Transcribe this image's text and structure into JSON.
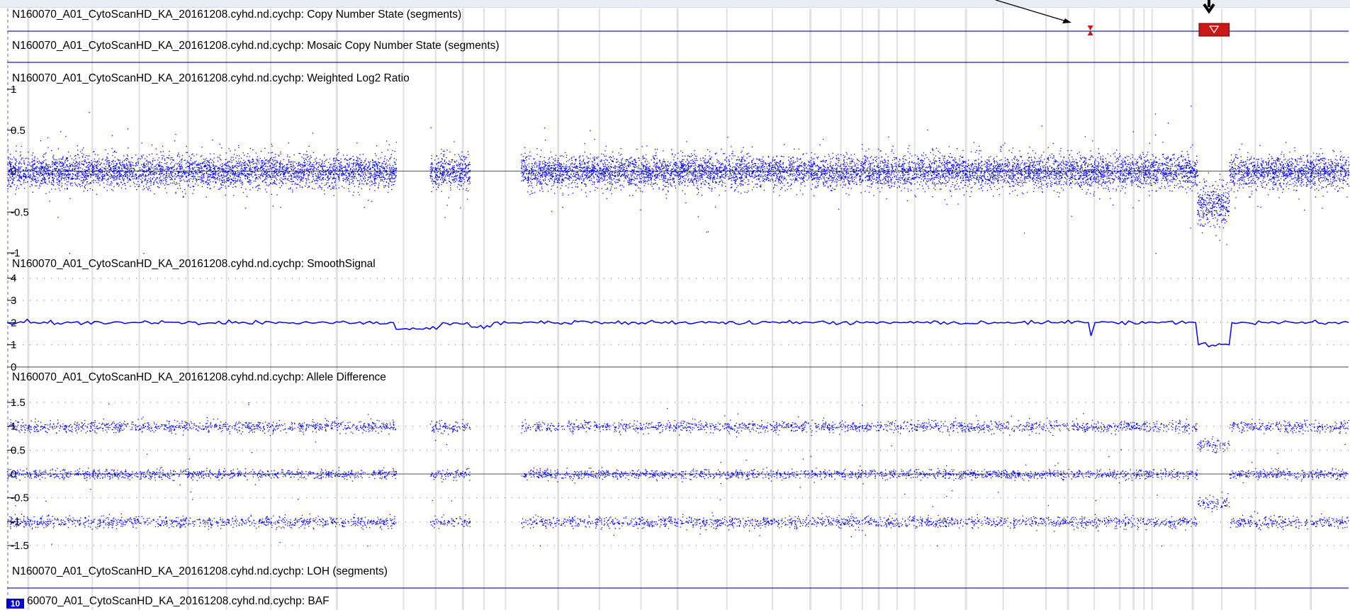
{
  "tracks": {
    "cn_state": "N160070_A01_CytoScanHD_KA_20161208.cyhd.nd.cychp: Copy Number State (segments)",
    "mosaic": "N160070_A01_CytoScanHD_KA_20161208.cyhd.nd.cychp: Mosaic Copy Number State (segments)",
    "log2": "N160070_A01_CytoScanHD_KA_20161208.cyhd.nd.cychp: Weighted Log2 Ratio",
    "smooth": "N160070_A01_CytoScanHD_KA_20161208.cyhd.nd.cychp: SmoothSignal",
    "allele": "N160070_A01_CytoScanHD_KA_20161208.cyhd.nd.cychp: Allele Difference",
    "loh": "N160070_A01_CytoScanHD_KA_20161208.cyhd.nd.cychp: LOH (segments)",
    "baf": "60070_A01_CytoScanHD_KA_20161208.cyhd.nd.cychp: BAF"
  },
  "chromosome_badge": "10",
  "colors": {
    "points": "#0000ff",
    "segment_line": "#2020c0",
    "highlight_band": "#c8c8c8",
    "deletion_marker": "#c81818",
    "grid": "#333333"
  },
  "icons": {
    "deletion_segment": "red-triangle-down",
    "small_deletion": "red-hourglass",
    "annotation_arrow": "black-arrow"
  },
  "chart_data": [
    {
      "type": "scatter",
      "track": "Weighted Log2 Ratio",
      "y_ticks": [
        "1",
        "0.5",
        "0",
        "-0.5",
        "-1"
      ],
      "ylim": [
        -1,
        1
      ],
      "segments": [
        {
          "x": [
            0.0,
            0.29
          ],
          "y": 0.0,
          "sd": 0.1
        },
        {
          "x": [
            0.315,
            0.345
          ],
          "y": 0.0,
          "sd": 0.1
        },
        {
          "x": [
            0.383,
            0.887
          ],
          "y": 0.0,
          "sd": 0.1
        },
        {
          "x": [
            0.887,
            0.911
          ],
          "y": -0.4,
          "sd": 0.14
        },
        {
          "x": [
            0.911,
            1.0
          ],
          "y": 0.0,
          "sd": 0.1
        }
      ]
    },
    {
      "type": "line",
      "track": "SmoothSignal",
      "y_ticks": [
        "4",
        "3",
        "2",
        "1",
        "0"
      ],
      "ylim": [
        0,
        4.5
      ],
      "points": [
        [
          0.0,
          2.0
        ],
        [
          0.288,
          2.0
        ],
        [
          0.29,
          1.7
        ],
        [
          0.32,
          1.7
        ],
        [
          0.325,
          2.0
        ],
        [
          0.343,
          2.0
        ],
        [
          0.346,
          1.8
        ],
        [
          0.36,
          1.8
        ],
        [
          0.363,
          2.0
        ],
        [
          0.806,
          2.0
        ],
        [
          0.808,
          1.4
        ],
        [
          0.811,
          2.0
        ],
        [
          0.886,
          2.0
        ],
        [
          0.888,
          1.0
        ],
        [
          0.911,
          1.0
        ],
        [
          0.913,
          2.0
        ],
        [
          1.0,
          2.0
        ]
      ]
    },
    {
      "type": "scatter",
      "track": "Allele Difference",
      "y_ticks": [
        "1.5",
        "1",
        "0.5",
        "0",
        "-0.5",
        "-1",
        "-1.5"
      ],
      "ylim": [
        -1.5,
        1.5
      ],
      "bands": [
        {
          "y": 1.0,
          "x": [
            0.0,
            0.887
          ],
          "sd": 0.06
        },
        {
          "y": 0.0,
          "x": [
            0.0,
            0.887
          ],
          "sd": 0.05
        },
        {
          "y": -1.0,
          "x": [
            0.0,
            0.887
          ],
          "sd": 0.06
        },
        {
          "y": 0.6,
          "x": [
            0.887,
            0.911
          ],
          "sd": 0.07
        },
        {
          "y": -0.6,
          "x": [
            0.887,
            0.911
          ],
          "sd": 0.07
        },
        {
          "y": 1.0,
          "x": [
            0.911,
            1.0
          ],
          "sd": 0.06
        },
        {
          "y": 0.0,
          "x": [
            0.911,
            1.0
          ],
          "sd": 0.05
        },
        {
          "y": -1.0,
          "x": [
            0.911,
            1.0
          ],
          "sd": 0.06
        }
      ]
    }
  ]
}
